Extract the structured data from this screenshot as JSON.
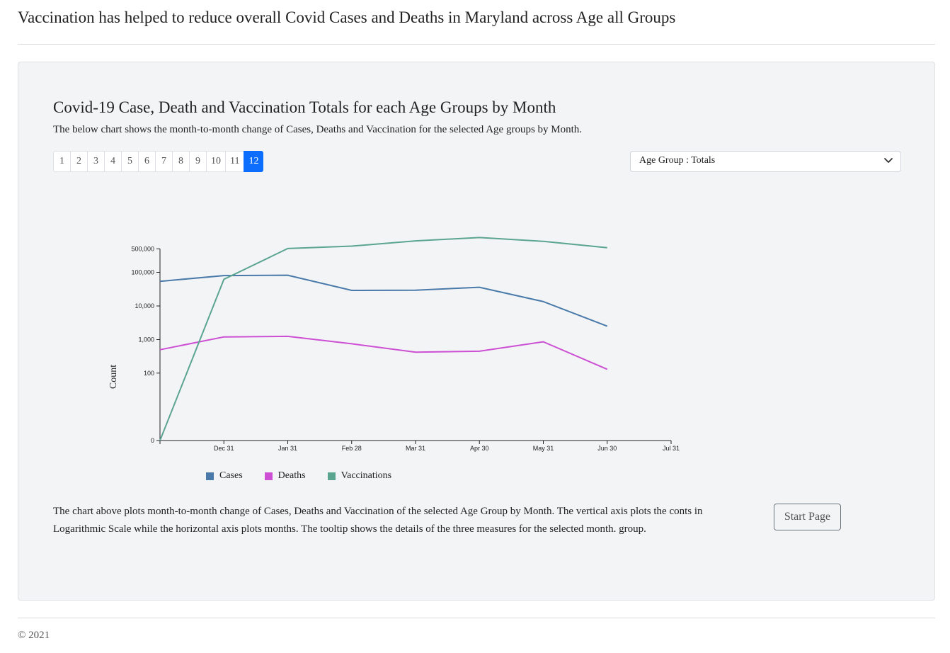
{
  "header": {
    "title": "Vaccination has helped to reduce overall Covid Cases and Deaths in Maryland across Age all Groups"
  },
  "section": {
    "title": "Covid-19 Case, Death and Vaccination Totals for each Age Groups by Month",
    "subtitle": "The below chart shows the month-to-month change of Cases, Deaths and Vaccination for the selected Age groups by Month.",
    "pages": [
      "1",
      "2",
      "3",
      "4",
      "5",
      "6",
      "7",
      "8",
      "9",
      "10",
      "11",
      "12"
    ],
    "active_page": "12",
    "dropdown": {
      "selected": "Age Group : Totals"
    },
    "description": "The chart above plots month-to-month change of Cases, Deaths and Vaccination of the selected Age Group by Month. The vertical axis plots the conts in Logarithmic Scale while the horizontal axis plots months. The tooltip shows the details of the three measures for the selected month. group.",
    "start_button": "Start Page"
  },
  "footer": {
    "text": "© 2021"
  },
  "chart_data": {
    "type": "line",
    "title": "",
    "xlabel": "",
    "ylabel": "Count",
    "y_scale": "symlog",
    "x_ticks": [
      "Dec 31",
      "Jan 31",
      "Feb 28",
      "Mar 31",
      "Apr 30",
      "May 31",
      "Jun 30",
      "Jul 31"
    ],
    "y_ticks": [
      "0",
      "100",
      "1,000",
      "10,000",
      "100,000",
      "500,000"
    ],
    "y_tick_values": [
      0,
      100,
      1000,
      10000,
      100000,
      500000
    ],
    "x": [
      "Nov 30",
      "Dec 31",
      "Jan 31",
      "Feb 28",
      "Mar 31",
      "Apr 30",
      "May 31",
      "Jun 30"
    ],
    "series": [
      {
        "name": "Cases",
        "color": "#4a7aaa",
        "values": [
          54000,
          80000,
          82000,
          29000,
          29500,
          36000,
          13500,
          2500
        ]
      },
      {
        "name": "Deaths",
        "color": "#cc4fd4",
        "values": [
          500,
          1200,
          1250,
          750,
          420,
          450,
          860,
          130
        ]
      },
      {
        "name": "Vaccinations",
        "color": "#5ba590",
        "values": [
          0,
          62000,
          510000,
          600000,
          860000,
          1080000,
          830000,
          540000
        ]
      }
    ],
    "legend_position": "bottom",
    "grid": false
  }
}
